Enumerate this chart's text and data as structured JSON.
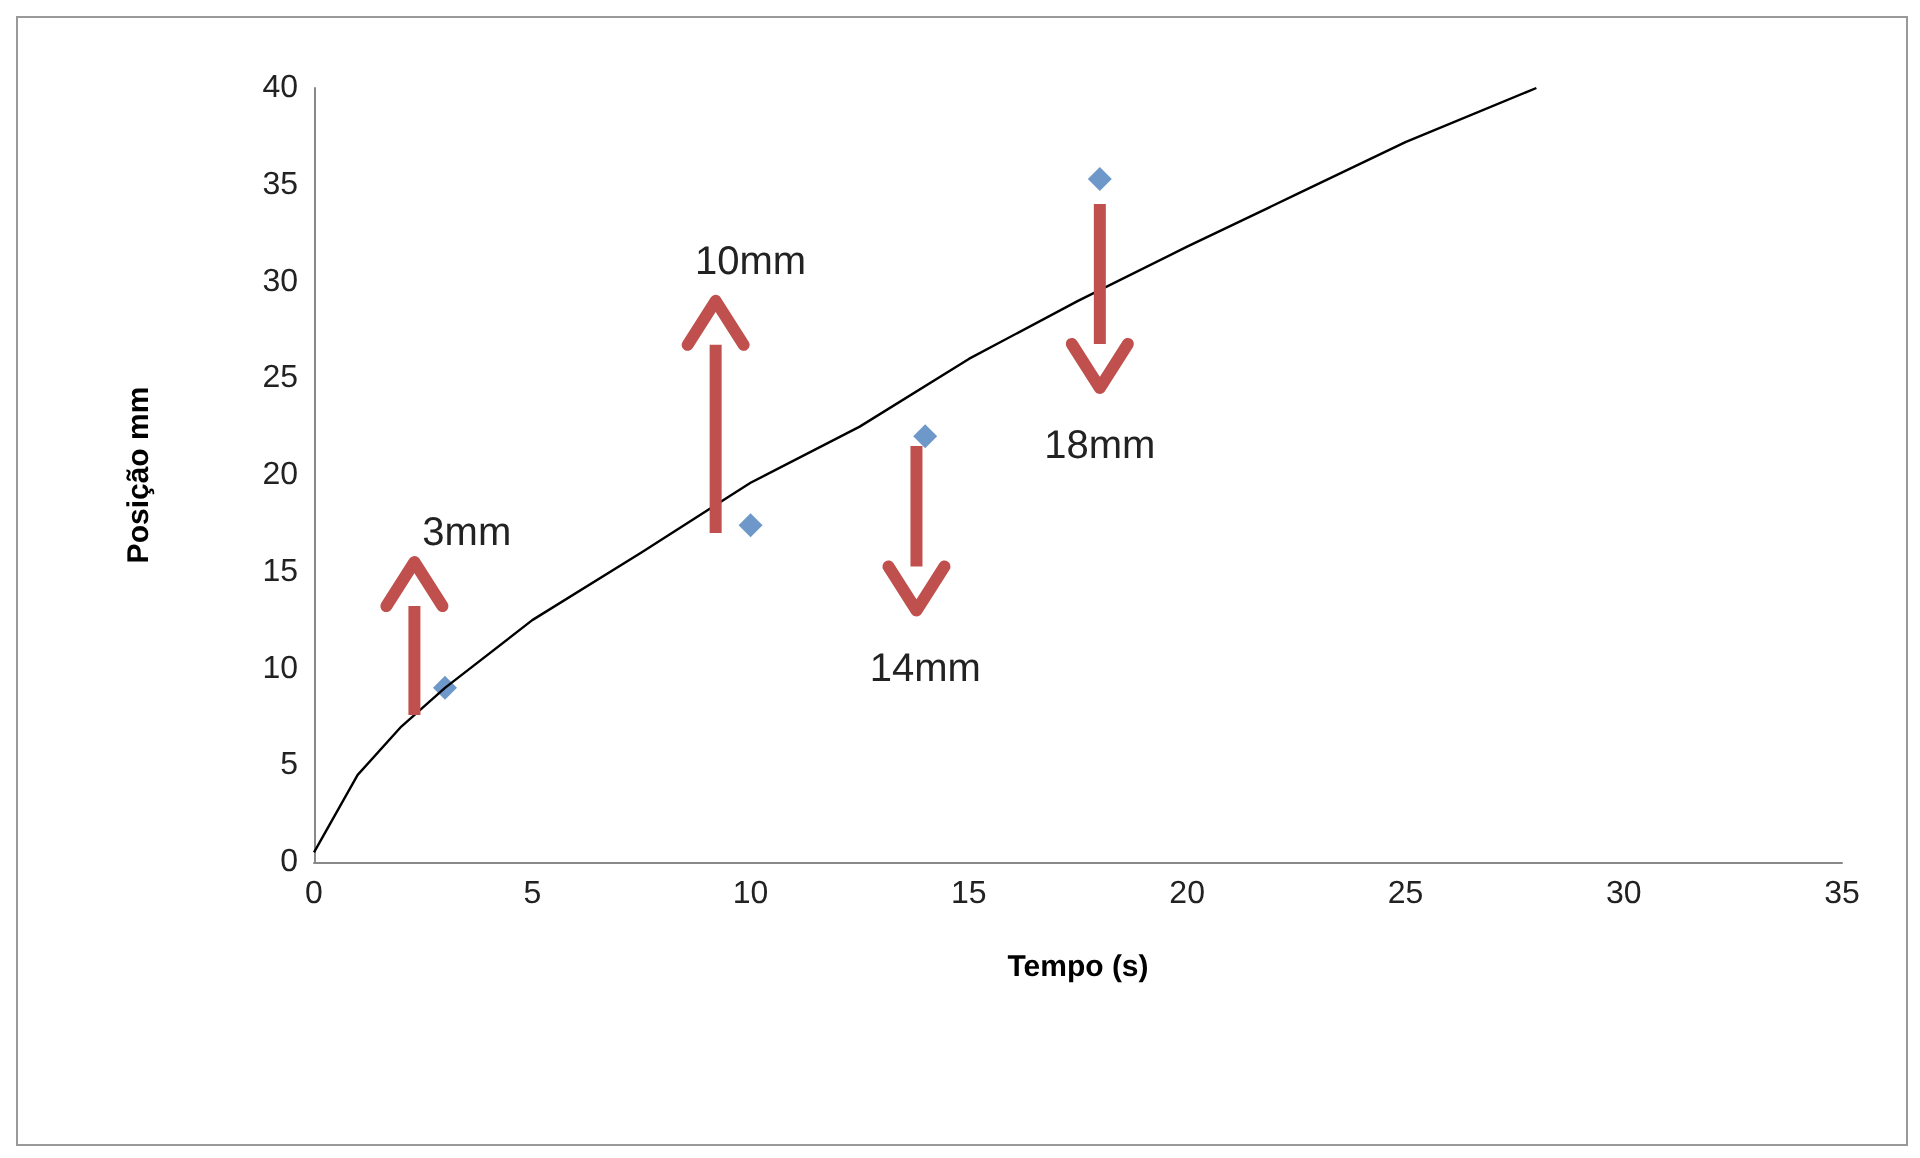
{
  "chart_data": {
    "type": "scatter",
    "xlabel": "Tempo (s)",
    "ylabel": "Posição mm",
    "xlim": [
      0,
      35
    ],
    "xticks": [
      0,
      5,
      10,
      15,
      20,
      25,
      30,
      35
    ],
    "ylim": [
      0,
      40
    ],
    "yticks": [
      0,
      5,
      10,
      15,
      20,
      25,
      30,
      35,
      40
    ],
    "series": [
      {
        "type": "scatter",
        "marker": "diamond",
        "color": "#4a7ebb",
        "x": [
          3,
          10,
          14,
          18
        ],
        "values": [
          9,
          17.4,
          22,
          35.3
        ]
      },
      {
        "type": "line",
        "marker": "none",
        "color": "#000000",
        "x": [
          0,
          1,
          2,
          3,
          5,
          7.5,
          10,
          12.5,
          15,
          17.5,
          20,
          22.5,
          25,
          28
        ],
        "values": [
          0.5,
          4.5,
          7,
          9,
          12.5,
          16,
          19.6,
          22.5,
          26,
          29,
          31.8,
          34.5,
          37.2,
          40
        ]
      }
    ],
    "annotations": [
      {
        "text": "3mm",
        "x": 2.3,
        "y": 7.6
      },
      "10mm",
      "14mm",
      "18mm"
    ]
  }
}
